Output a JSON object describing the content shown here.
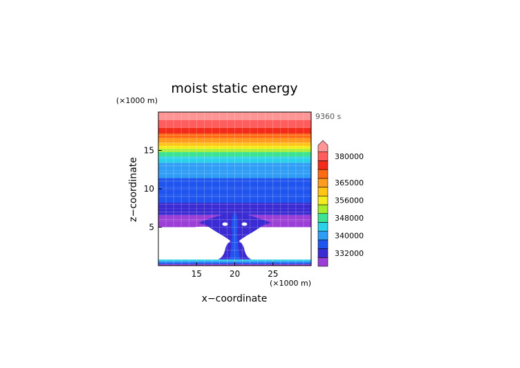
{
  "chart_data": {
    "type": "heatmap",
    "title": "moist static energy",
    "xlabel": "x−coordinate",
    "ylabel": "z−coordinate",
    "x_unit": "(×1000 m)",
    "y_unit": "(×1000 m)",
    "time_label": "9360 s",
    "xlim": [
      10,
      30
    ],
    "ylim": [
      0,
      20
    ],
    "x_ticks": [
      {
        "value": 15,
        "label": "15"
      },
      {
        "value": 20,
        "label": "20"
      },
      {
        "value": 25,
        "label": "25"
      }
    ],
    "y_ticks": [
      {
        "value": 5,
        "label": "5"
      },
      {
        "value": 10,
        "label": "10"
      },
      {
        "value": 15,
        "label": "15"
      }
    ],
    "grid": true,
    "colorbar": {
      "placement": "right",
      "ticks": [
        {
          "level": 332000,
          "label": "332000"
        },
        {
          "level": 340000,
          "label": "340000"
        },
        {
          "level": 348000,
          "label": "348000"
        },
        {
          "level": 356000,
          "label": "356000"
        },
        {
          "level": 365000,
          "label": "365000"
        },
        {
          "level": 380000,
          "label": "380000"
        }
      ],
      "levels": [
        {
          "level": 328000,
          "color": "#9b3fd6"
        },
        {
          "level": 332000,
          "color": "#3a2bd2"
        },
        {
          "level": 336000,
          "color": "#1f55ee"
        },
        {
          "level": 340000,
          "color": "#2f9cf5"
        },
        {
          "level": 344000,
          "color": "#2bd1e8"
        },
        {
          "level": 348000,
          "color": "#3be392"
        },
        {
          "level": 352000,
          "color": "#a6ec2e"
        },
        {
          "level": 356000,
          "color": "#f3ec21"
        },
        {
          "level": 360000,
          "color": "#ffc414"
        },
        {
          "level": 365000,
          "color": "#ff9b1e"
        },
        {
          "level": 370000,
          "color": "#ff6a12"
        },
        {
          "level": 375000,
          "color": "#f32b1b"
        },
        {
          "level": 380000,
          "color": "#ff5d5d"
        },
        {
          "level": 385000,
          "color": "#ff9595"
        }
      ]
    },
    "field_bands": [
      {
        "z0": 0.0,
        "z1": 0.2,
        "level": 328000
      },
      {
        "z0": 0.2,
        "z1": 0.4,
        "level": 336000
      },
      {
        "z0": 0.4,
        "z1": 0.6,
        "level": 340000
      },
      {
        "z0": 0.6,
        "z1": 0.8,
        "level": 344000
      },
      {
        "z0": 5.0,
        "z1": 5.8,
        "level": 328000
      },
      {
        "z0": 5.8,
        "z1": 6.6,
        "level": 328000
      },
      {
        "z0": 6.6,
        "z1": 7.4,
        "level": 332000
      },
      {
        "z0": 7.4,
        "z1": 8.2,
        "level": 332000
      },
      {
        "z0": 8.2,
        "z1": 9.2,
        "level": 336000
      },
      {
        "z0": 9.2,
        "z1": 10.2,
        "level": 336000
      },
      {
        "z0": 10.2,
        "z1": 11.4,
        "level": 336000
      },
      {
        "z0": 11.4,
        "z1": 12.4,
        "level": 340000
      },
      {
        "z0": 12.4,
        "z1": 13.4,
        "level": 340000
      },
      {
        "z0": 13.4,
        "z1": 14.2,
        "level": 344000
      },
      {
        "z0": 14.2,
        "z1": 14.8,
        "level": 348000
      },
      {
        "z0": 14.8,
        "z1": 15.2,
        "level": 352000
      },
      {
        "z0": 15.2,
        "z1": 15.6,
        "level": 356000
      },
      {
        "z0": 15.6,
        "z1": 16.0,
        "level": 360000
      },
      {
        "z0": 16.0,
        "z1": 16.6,
        "level": 365000
      },
      {
        "z0": 16.6,
        "z1": 17.2,
        "level": 370000
      },
      {
        "z0": 17.2,
        "z1": 18.0,
        "level": 375000
      },
      {
        "z0": 18.0,
        "z1": 19.0,
        "level": 380000
      },
      {
        "z0": 19.0,
        "z1": 20.0,
        "level": 385000
      }
    ]
  }
}
